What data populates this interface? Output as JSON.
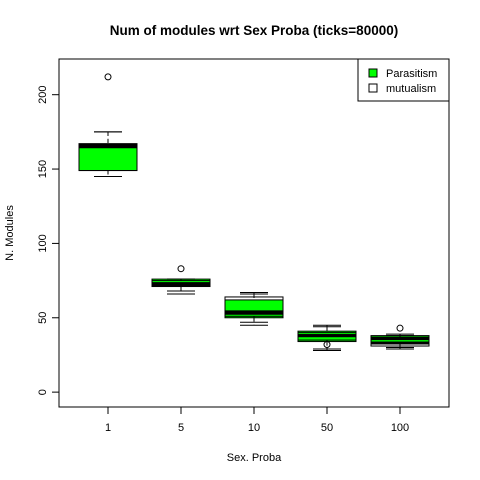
{
  "chart_data": {
    "type": "box",
    "title": "Num of modules wrt Sex Proba (ticks=80000)",
    "xlabel": "Sex. Proba",
    "ylabel": "N. Modules",
    "categories": [
      "1",
      "5",
      "10",
      "50",
      "100"
    ],
    "y_ticks": [
      "0",
      "50",
      "100",
      "150",
      "200"
    ],
    "ylim": [
      -10,
      224
    ],
    "legend": {
      "position": "top-right",
      "entries": [
        {
          "label": "Parasitism",
          "color": "#00ff00"
        },
        {
          "label": "mutualism",
          "color": "#ffffff"
        }
      ]
    },
    "series": [
      {
        "name": "Parasitism",
        "color": "#00ff00",
        "boxes": [
          {
            "category": "1",
            "whisker_low": 145,
            "q1": 149,
            "median": 166,
            "q3": 167,
            "whisker_high": 175,
            "outliers": [
              212
            ]
          },
          {
            "category": "5",
            "whisker_low": 68,
            "q1": 72,
            "median": 73,
            "q3": 76,
            "whisker_high": 76,
            "outliers": [
              83
            ]
          },
          {
            "category": "10",
            "whisker_low": 45,
            "q1": 50,
            "median": 53,
            "q3": 62,
            "whisker_high": 66,
            "outliers": []
          },
          {
            "category": "50",
            "whisker_low": 28,
            "q1": 34,
            "median": 38,
            "q3": 41,
            "whisker_high": 45,
            "outliers": [
              32
            ]
          },
          {
            "category": "100",
            "whisker_low": 30,
            "q1": 33,
            "median": 36,
            "q3": 38,
            "whisker_high": 38,
            "outliers": [
              43
            ]
          }
        ]
      },
      {
        "name": "mutualism",
        "color": "#ffffff",
        "boxes": [
          {
            "category": "1",
            "whisker_low": 145,
            "q1": 149,
            "median": 165,
            "q3": 167,
            "whisker_high": 175,
            "outliers": []
          },
          {
            "category": "5",
            "whisker_low": 66,
            "q1": 71,
            "median": 72,
            "q3": 75,
            "whisker_high": 76,
            "outliers": []
          },
          {
            "category": "10",
            "whisker_low": 47,
            "q1": 51,
            "median": 54,
            "q3": 64,
            "whisker_high": 67,
            "outliers": []
          },
          {
            "category": "50",
            "whisker_low": 29,
            "q1": 35,
            "median": 38,
            "q3": 40,
            "whisker_high": 44,
            "outliers": []
          },
          {
            "category": "100",
            "whisker_low": 29,
            "q1": 31,
            "median": 33,
            "q3": 37,
            "whisker_high": 39,
            "outliers": []
          }
        ]
      }
    ],
    "grid": false
  }
}
